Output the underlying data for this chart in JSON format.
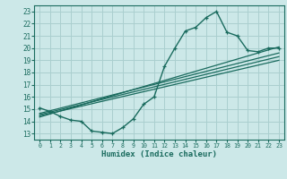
{
  "xlabel": "Humidex (Indice chaleur)",
  "ylabel": "",
  "xlim": [
    -0.5,
    23.5
  ],
  "ylim": [
    12.5,
    23.5
  ],
  "xticks": [
    0,
    1,
    2,
    3,
    4,
    5,
    6,
    7,
    8,
    9,
    10,
    11,
    12,
    13,
    14,
    15,
    16,
    17,
    18,
    19,
    20,
    21,
    22,
    23
  ],
  "yticks": [
    13,
    14,
    15,
    16,
    17,
    18,
    19,
    20,
    21,
    22,
    23
  ],
  "bg_color": "#cce8e8",
  "line_color": "#1a6b5e",
  "grid_color": "#aacfcf",
  "main_curve_x": [
    0,
    1,
    2,
    3,
    4,
    5,
    6,
    7,
    8,
    9,
    10,
    11,
    12,
    13,
    14,
    15,
    16,
    17,
    18,
    19,
    20,
    21,
    22,
    23
  ],
  "main_curve_y": [
    15.1,
    14.8,
    14.4,
    14.1,
    14.0,
    13.2,
    13.1,
    13.0,
    13.5,
    14.2,
    15.4,
    16.0,
    18.5,
    20.0,
    21.4,
    21.7,
    22.5,
    23.0,
    21.3,
    21.0,
    19.8,
    19.7,
    20.0,
    20.0
  ],
  "regression_lines": [
    {
      "x": [
        0,
        23
      ],
      "y": [
        14.55,
        19.3
      ]
    },
    {
      "x": [
        0,
        23
      ],
      "y": [
        14.65,
        19.6
      ]
    },
    {
      "x": [
        0,
        23
      ],
      "y": [
        14.45,
        19.0
      ]
    },
    {
      "x": [
        0,
        23
      ],
      "y": [
        14.35,
        20.1
      ]
    }
  ]
}
